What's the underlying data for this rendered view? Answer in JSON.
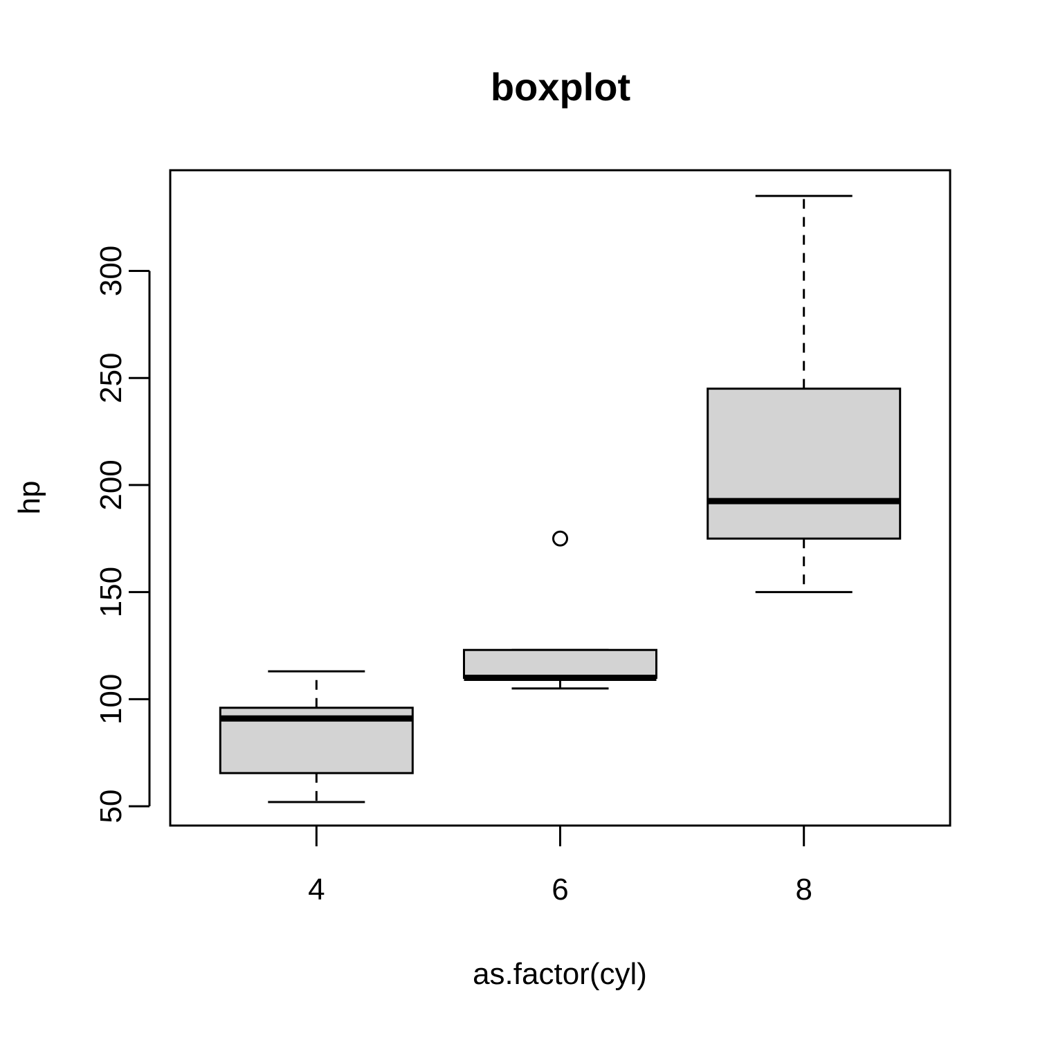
{
  "chart_data": {
    "type": "boxplot",
    "title": "boxplot",
    "xlabel": "as.factor(cyl)",
    "ylabel": "hp",
    "ylim": [
      41,
      347
    ],
    "yticks": [
      50,
      100,
      150,
      200,
      250,
      300
    ],
    "grid": false,
    "box_fill": "#d3d3d3",
    "categories": [
      "4",
      "6",
      "8"
    ],
    "boxes": [
      {
        "category": "4",
        "min": 52,
        "q1": 65.5,
        "median": 91,
        "q3": 96,
        "max": 113,
        "outliers": []
      },
      {
        "category": "6",
        "min": 105,
        "q1": 110,
        "median": 110,
        "q3": 123,
        "max": 123,
        "outliers": [
          175
        ]
      },
      {
        "category": "8",
        "min": 150,
        "q1": 175,
        "median": 192.5,
        "q3": 245,
        "max": 335,
        "outliers": []
      }
    ]
  }
}
